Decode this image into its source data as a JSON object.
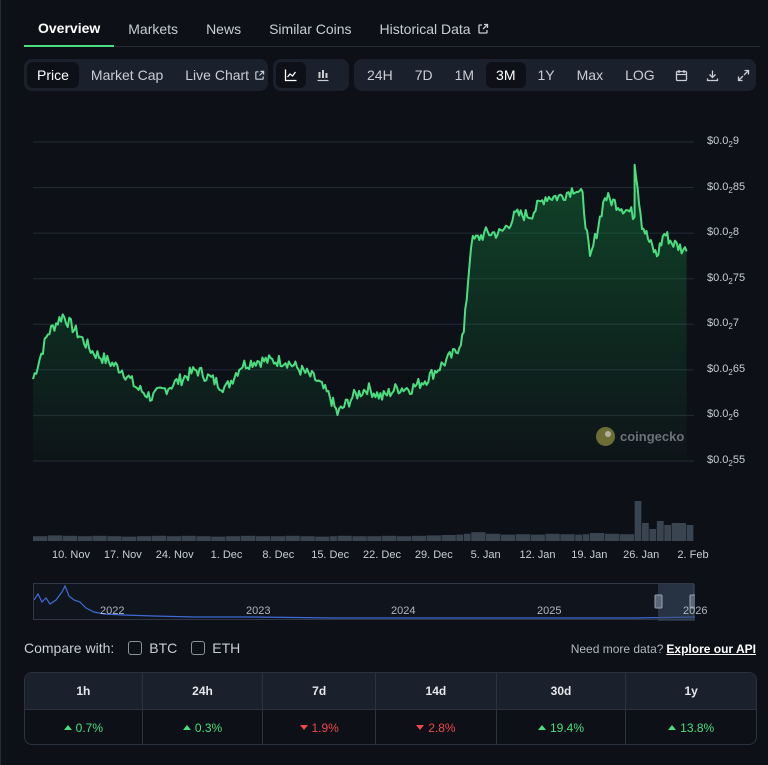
{
  "tabs": {
    "overview": "Overview",
    "markets": "Markets",
    "news": "News",
    "similar": "Similar Coins",
    "historical": "Historical Data"
  },
  "toolbar": {
    "price": "Price",
    "market_cap": "Market Cap",
    "live_chart": "Live Chart",
    "ranges": [
      "24H",
      "7D",
      "1M",
      "3M",
      "1Y",
      "Max",
      "LOG"
    ],
    "active_range": "3M",
    "icons": [
      "line-chart-icon",
      "candlestick-icon",
      "calendar-icon",
      "download-icon",
      "expand-icon"
    ]
  },
  "watermark": "coingecko",
  "chart_data": {
    "type": "line",
    "title": "",
    "series_color": "#4ade80",
    "y_ticks": [
      {
        "label": "$0.0",
        "sub": "2",
        "tail": "9",
        "value": 0.009
      },
      {
        "label": "$0.0",
        "sub": "2",
        "tail": "85",
        "value": 0.0085
      },
      {
        "label": "$0.0",
        "sub": "2",
        "tail": "8",
        "value": 0.008
      },
      {
        "label": "$0.0",
        "sub": "2",
        "tail": "75",
        "value": 0.0075
      },
      {
        "label": "$0.0",
        "sub": "2",
        "tail": "7",
        "value": 0.007
      },
      {
        "label": "$0.0",
        "sub": "2",
        "tail": "65",
        "value": 0.0065
      },
      {
        "label": "$0.0",
        "sub": "2",
        "tail": "6",
        "value": 0.006
      },
      {
        "label": "$0.0",
        "sub": "2",
        "tail": "55",
        "value": 0.0055
      }
    ],
    "ylim": [
      0.0055,
      0.009
    ],
    "x_ticks": [
      "10. Nov",
      "17. Nov",
      "24. Nov",
      "1. Dec",
      "8. Dec",
      "15. Dec",
      "22. Dec",
      "29. Dec",
      "5. Jan",
      "12. Jan",
      "19. Jan",
      "26. Jan",
      "2. Feb"
    ],
    "x": [
      "2025-11-06",
      "2025-11-08",
      "2025-11-10",
      "2025-11-12",
      "2025-11-14",
      "2025-11-16",
      "2025-11-18",
      "2025-11-20",
      "2025-11-22",
      "2025-11-24",
      "2025-11-26",
      "2025-11-28",
      "2025-11-30",
      "2025-12-02",
      "2025-12-04",
      "2025-12-06",
      "2025-12-08",
      "2025-12-10",
      "2025-12-12",
      "2025-12-14",
      "2025-12-16",
      "2025-12-17",
      "2025-12-19",
      "2025-12-21",
      "2025-12-23",
      "2025-12-25",
      "2025-12-27",
      "2025-12-29",
      "2025-12-31",
      "2026-01-02",
      "2026-01-03",
      "2026-01-04",
      "2026-01-06",
      "2026-01-08",
      "2026-01-10",
      "2026-01-12",
      "2026-01-14",
      "2026-01-16",
      "2026-01-18",
      "2026-01-19",
      "2026-01-20",
      "2026-01-22",
      "2026-01-24",
      "2026-01-26",
      "2026-01-26",
      "2026-01-27",
      "2026-01-28",
      "2026-01-29",
      "2026-01-30",
      "2026-01-31",
      "2026-02-02"
    ],
    "values": [
      0.0064,
      0.0069,
      0.0071,
      0.0069,
      0.0067,
      0.0066,
      0.0065,
      0.0063,
      0.0062,
      0.0063,
      0.0064,
      0.0065,
      0.0064,
      0.0063,
      0.00655,
      0.0066,
      0.0066,
      0.0066,
      0.0065,
      0.0064,
      0.0062,
      0.00602,
      0.0062,
      0.0063,
      0.0062,
      0.0063,
      0.0063,
      0.0064,
      0.00655,
      0.0067,
      0.0069,
      0.0079,
      0.008,
      0.008,
      0.0082,
      0.0082,
      0.0084,
      0.0084,
      0.0085,
      0.0084,
      0.0077,
      0.0084,
      0.0083,
      0.0082,
      0.0088,
      0.0081,
      0.0079,
      0.00775,
      0.008,
      0.0079,
      0.0078
    ],
    "volume": [
      0.12,
      0.14,
      0.13,
      0.12,
      0.13,
      0.12,
      0.11,
      0.12,
      0.13,
      0.12,
      0.13,
      0.12,
      0.11,
      0.12,
      0.13,
      0.12,
      0.12,
      0.13,
      0.12,
      0.11,
      0.12,
      0.13,
      0.12,
      0.12,
      0.13,
      0.12,
      0.13,
      0.14,
      0.15,
      0.16,
      0.18,
      0.22,
      0.18,
      0.16,
      0.17,
      0.16,
      0.18,
      0.17,
      0.16,
      0.17,
      0.2,
      0.18,
      0.17,
      0.18,
      1.0,
      0.45,
      0.3,
      0.5,
      0.4,
      0.45,
      0.4
    ]
  },
  "navigator": {
    "years": [
      "2022",
      "2023",
      "2024",
      "2025",
      "2026"
    ]
  },
  "compare": {
    "label": "Compare with:",
    "btc": "BTC",
    "eth": "ETH",
    "need_more": "Need more data?",
    "api_link": "Explore our API"
  },
  "performance": {
    "headers": [
      "1h",
      "24h",
      "7d",
      "14d",
      "30d",
      "1y"
    ],
    "values": [
      "0.7%",
      "0.3%",
      "1.9%",
      "2.8%",
      "19.4%",
      "13.8%"
    ],
    "directions": [
      "up",
      "up",
      "down",
      "down",
      "up",
      "up"
    ],
    "colors": {
      "up": "#4ade80",
      "down": "#f04848"
    }
  }
}
